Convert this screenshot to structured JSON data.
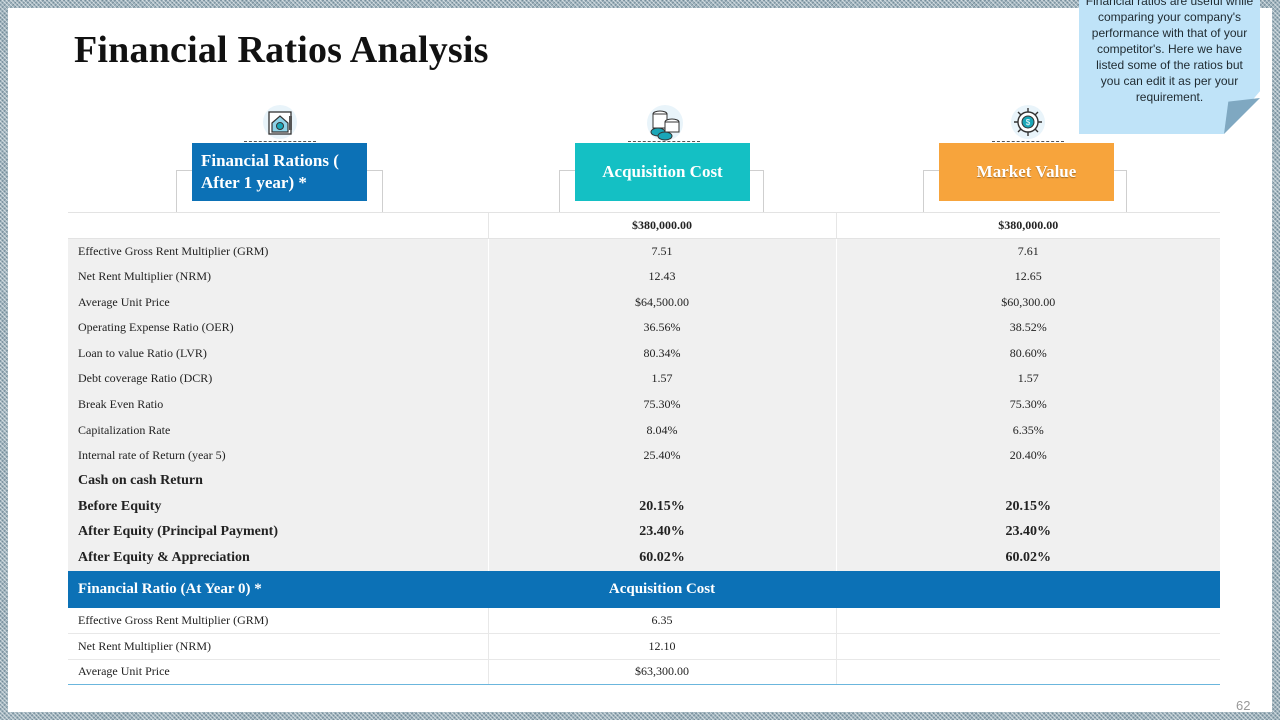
{
  "title": "Financial Ratios Analysis",
  "note": "Financial ratios are useful while comparing your company's performance with that of your competitor's. Here we have listed some of the ratios but you can edit it as per your requirement.",
  "icons": [
    "house-document-icon",
    "coins-icon",
    "gear-dollar-icon"
  ],
  "headers": {
    "col1": "Financial Rations ( After 1 year) *",
    "col2": "Acquisition Cost",
    "col3": "Market Value"
  },
  "top_row": {
    "col2": "$380,000.00",
    "col3": "$380,000.00"
  },
  "rows": [
    {
      "label": "Effective Gross Rent Multiplier (GRM)",
      "acq": "7.51",
      "mv": "7.61"
    },
    {
      "label": "Net Rent Multiplier (NRM)",
      "acq": "12.43",
      "mv": "12.65"
    },
    {
      "label": "Average Unit Price",
      "acq": "$64,500.00",
      "mv": "$60,300.00"
    },
    {
      "label": "Operating Expense Ratio (OER)",
      "acq": "36.56%",
      "mv": "38.52%"
    },
    {
      "label": "Loan to value Ratio (LVR)",
      "acq": "80.34%",
      "mv": "80.60%"
    },
    {
      "label": "Debt coverage Ratio (DCR)",
      "acq": "1.57",
      "mv": "1.57"
    },
    {
      "label": "Break Even Ratio",
      "acq": "75.30%",
      "mv": "75.30%"
    },
    {
      "label": "Capitalization Rate",
      "acq": "8.04%",
      "mv": "6.35%"
    },
    {
      "label": "Internal rate of Return (year 5)",
      "acq": "25.40%",
      "mv": "20.40%"
    }
  ],
  "cash_section": {
    "label": "Cash on cash Return",
    "rows": [
      {
        "label": "Before Equity",
        "acq": "20.15%",
        "mv": "20.15%"
      },
      {
        "label": "After Equity (Principal Payment)",
        "acq": "23.40%",
        "mv": "23.40%"
      },
      {
        "label": "After Equity & Appreciation",
        "acq": "60.02%",
        "mv": "60.02%"
      }
    ]
  },
  "year0": {
    "header_col1": "Financial  Ratio (At Year 0) *",
    "header_col2": "Acquisition  Cost",
    "rows": [
      {
        "label": "Effective Gross Rent Multiplier (GRM)",
        "acq": "6.35"
      },
      {
        "label": "Net Rent Multiplier (NRM)",
        "acq": "12.10"
      },
      {
        "label": "Average Unit Price",
        "acq": "$63,300.00"
      }
    ]
  },
  "page_number": "62",
  "colors": {
    "blue": "#0c71b6",
    "teal": "#14c0c4",
    "orange": "#f7a43c",
    "note_bg": "#bfe3f8",
    "row_grey": "#f0f0f0"
  }
}
